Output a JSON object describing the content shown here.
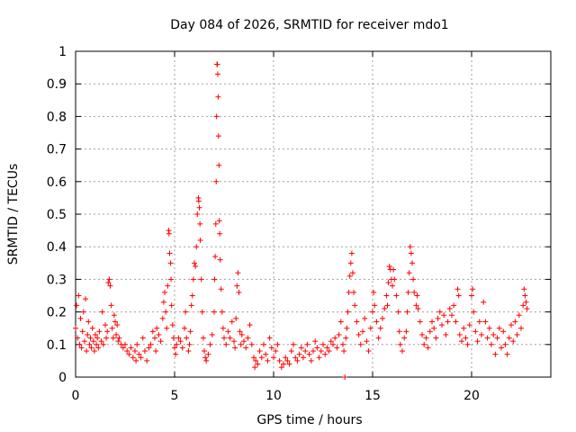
{
  "chart_data": {
    "type": "scatter",
    "title": "Day 084 of 2026, SRMTID for receiver mdo1",
    "xlabel": "GPS time / hours",
    "ylabel": "SRMTID / TECUs",
    "xlim": [
      0,
      24
    ],
    "ylim": [
      0,
      1
    ],
    "xticks": [
      0,
      5,
      10,
      15,
      20
    ],
    "xtick_labels": [
      "0",
      "5",
      "10",
      "15",
      "20"
    ],
    "yticks": [
      0,
      0.1,
      0.2,
      0.3,
      0.4,
      0.5,
      0.6,
      0.7,
      0.8,
      0.9,
      1
    ],
    "ytick_labels": [
      "0",
      "0.1",
      "0.2",
      "0.3",
      "0.4",
      "0.5",
      "0.6",
      "0.7",
      "0.8",
      "0.9",
      "1"
    ],
    "grid": true,
    "marker": "+",
    "color": "#ff0000",
    "series": [
      {
        "name": "mdo1",
        "points": [
          [
            0.0,
            0.15
          ],
          [
            0.05,
            0.22
          ],
          [
            0.1,
            0.12
          ],
          [
            0.15,
            0.25
          ],
          [
            0.2,
            0.1
          ],
          [
            0.25,
            0.18
          ],
          [
            0.3,
            0.09
          ],
          [
            0.35,
            0.14
          ],
          [
            0.4,
            0.2
          ],
          [
            0.45,
            0.11
          ],
          [
            0.5,
            0.24
          ],
          [
            0.55,
            0.08
          ],
          [
            0.6,
            0.13
          ],
          [
            0.65,
            0.17
          ],
          [
            0.7,
            0.1
          ],
          [
            0.75,
            0.12
          ],
          [
            0.8,
            0.09
          ],
          [
            0.85,
            0.15
          ],
          [
            0.9,
            0.11
          ],
          [
            0.95,
            0.08
          ],
          [
            1.0,
            0.13
          ],
          [
            1.05,
            0.1
          ],
          [
            1.1,
            0.12
          ],
          [
            1.15,
            0.09
          ],
          [
            1.2,
            0.14
          ],
          [
            1.3,
            0.11
          ],
          [
            1.35,
            0.2
          ],
          [
            1.4,
            0.1
          ],
          [
            1.5,
            0.16
          ],
          [
            1.55,
            0.12
          ],
          [
            1.6,
            0.14
          ],
          [
            1.65,
            0.29
          ],
          [
            1.7,
            0.3
          ],
          [
            1.75,
            0.28
          ],
          [
            1.8,
            0.22
          ],
          [
            1.85,
            0.15
          ],
          [
            1.9,
            0.12
          ],
          [
            1.95,
            0.19
          ],
          [
            2.0,
            0.17
          ],
          [
            2.05,
            0.13
          ],
          [
            2.1,
            0.16
          ],
          [
            2.15,
            0.11
          ],
          [
            2.2,
            0.12
          ],
          [
            2.3,
            0.1
          ],
          [
            2.4,
            0.09
          ],
          [
            2.5,
            0.1
          ],
          [
            2.6,
            0.08
          ],
          [
            2.7,
            0.07
          ],
          [
            2.8,
            0.09
          ],
          [
            2.9,
            0.06
          ],
          [
            3.0,
            0.08
          ],
          [
            3.05,
            0.05
          ],
          [
            3.1,
            0.1
          ],
          [
            3.2,
            0.07
          ],
          [
            3.3,
            0.06
          ],
          [
            3.4,
            0.12
          ],
          [
            3.5,
            0.08
          ],
          [
            3.6,
            0.05
          ],
          [
            3.7,
            0.09
          ],
          [
            3.8,
            0.1
          ],
          [
            3.9,
            0.14
          ],
          [
            4.0,
            0.12
          ],
          [
            4.05,
            0.08
          ],
          [
            4.1,
            0.15
          ],
          [
            4.2,
            0.13
          ],
          [
            4.3,
            0.11
          ],
          [
            4.4,
            0.18
          ],
          [
            4.45,
            0.23
          ],
          [
            4.5,
            0.26
          ],
          [
            4.55,
            0.2
          ],
          [
            4.6,
            0.15
          ],
          [
            4.65,
            0.28
          ],
          [
            4.7,
            0.45
          ],
          [
            4.72,
            0.44
          ],
          [
            4.75,
            0.38
          ],
          [
            4.8,
            0.35
          ],
          [
            4.82,
            0.3
          ],
          [
            4.85,
            0.22
          ],
          [
            4.9,
            0.16
          ],
          [
            4.95,
            0.12
          ],
          [
            5.0,
            0.09
          ],
          [
            5.05,
            0.07
          ],
          [
            5.1,
            0.1
          ],
          [
            5.2,
            0.12
          ],
          [
            5.3,
            0.11
          ],
          [
            5.4,
            0.09
          ],
          [
            5.5,
            0.15
          ],
          [
            5.55,
            0.2
          ],
          [
            5.6,
            0.12
          ],
          [
            5.7,
            0.08
          ],
          [
            5.75,
            0.1
          ],
          [
            5.8,
            0.14
          ],
          [
            5.85,
            0.22
          ],
          [
            5.9,
            0.25
          ],
          [
            5.95,
            0.3
          ],
          [
            6.0,
            0.35
          ],
          [
            6.05,
            0.34
          ],
          [
            6.1,
            0.4
          ],
          [
            6.15,
            0.5
          ],
          [
            6.2,
            0.55
          ],
          [
            6.22,
            0.54
          ],
          [
            6.25,
            0.52
          ],
          [
            6.28,
            0.47
          ],
          [
            6.3,
            0.42
          ],
          [
            6.35,
            0.3
          ],
          [
            6.4,
            0.2
          ],
          [
            6.45,
            0.12
          ],
          [
            6.5,
            0.08
          ],
          [
            6.55,
            0.06
          ],
          [
            6.6,
            0.05
          ],
          [
            6.7,
            0.07
          ],
          [
            6.8,
            0.1
          ],
          [
            6.9,
            0.13
          ],
          [
            7.0,
            0.2
          ],
          [
            7.02,
            0.3
          ],
          [
            7.05,
            0.37
          ],
          [
            7.08,
            0.47
          ],
          [
            7.1,
            0.6
          ],
          [
            7.12,
            0.8
          ],
          [
            7.14,
            0.96
          ],
          [
            7.16,
            0.96
          ],
          [
            7.18,
            0.93
          ],
          [
            7.2,
            0.86
          ],
          [
            7.22,
            0.74
          ],
          [
            7.24,
            0.65
          ],
          [
            7.26,
            0.48
          ],
          [
            7.28,
            0.44
          ],
          [
            7.3,
            0.36
          ],
          [
            7.35,
            0.27
          ],
          [
            7.4,
            0.2
          ],
          [
            7.45,
            0.15
          ],
          [
            7.5,
            0.12
          ],
          [
            7.6,
            0.1
          ],
          [
            7.7,
            0.14
          ],
          [
            7.8,
            0.12
          ],
          [
            7.9,
            0.17
          ],
          [
            8.0,
            0.11
          ],
          [
            8.05,
            0.09
          ],
          [
            8.1,
            0.18
          ],
          [
            8.15,
            0.28
          ],
          [
            8.2,
            0.32
          ],
          [
            8.25,
            0.26
          ],
          [
            8.3,
            0.14
          ],
          [
            8.35,
            0.1
          ],
          [
            8.4,
            0.13
          ],
          [
            8.5,
            0.11
          ],
          [
            8.6,
            0.09
          ],
          [
            8.7,
            0.12
          ],
          [
            8.8,
            0.16
          ],
          [
            8.9,
            0.1
          ],
          [
            9.0,
            0.06
          ],
          [
            9.05,
            0.03
          ],
          [
            9.1,
            0.05
          ],
          [
            9.2,
            0.04
          ],
          [
            9.3,
            0.08
          ],
          [
            9.4,
            0.06
          ],
          [
            9.5,
            0.1
          ],
          [
            9.6,
            0.07
          ],
          [
            9.7,
            0.05
          ],
          [
            9.8,
            0.12
          ],
          [
            9.9,
            0.09
          ],
          [
            10.0,
            0.06
          ],
          [
            10.1,
            0.08
          ],
          [
            10.2,
            0.1
          ],
          [
            10.3,
            0.05
          ],
          [
            10.4,
            0.03
          ],
          [
            10.5,
            0.04
          ],
          [
            10.6,
            0.06
          ],
          [
            10.7,
            0.05
          ],
          [
            10.8,
            0.04
          ],
          [
            10.9,
            0.08
          ],
          [
            11.0,
            0.1
          ],
          [
            11.1,
            0.06
          ],
          [
            11.2,
            0.05
          ],
          [
            11.3,
            0.07
          ],
          [
            11.4,
            0.09
          ],
          [
            11.5,
            0.06
          ],
          [
            11.6,
            0.08
          ],
          [
            11.7,
            0.1
          ],
          [
            11.8,
            0.07
          ],
          [
            11.9,
            0.05
          ],
          [
            12.0,
            0.08
          ],
          [
            12.1,
            0.11
          ],
          [
            12.2,
            0.09
          ],
          [
            12.3,
            0.06
          ],
          [
            12.4,
            0.08
          ],
          [
            12.5,
            0.1
          ],
          [
            12.6,
            0.07
          ],
          [
            12.7,
            0.09
          ],
          [
            12.8,
            0.08
          ],
          [
            12.9,
            0.11
          ],
          [
            13.0,
            0.1
          ],
          [
            13.1,
            0.12
          ],
          [
            13.2,
            0.09
          ],
          [
            13.3,
            0.13
          ],
          [
            13.4,
            0.17
          ],
          [
            13.5,
            0.1
          ],
          [
            13.55,
            0.08
          ],
          [
            13.6,
            0.0
          ],
          [
            13.65,
            0.12
          ],
          [
            13.7,
            0.15
          ],
          [
            13.75,
            0.2
          ],
          [
            13.8,
            0.26
          ],
          [
            13.85,
            0.31
          ],
          [
            13.9,
            0.35
          ],
          [
            13.95,
            0.38
          ],
          [
            14.0,
            0.32
          ],
          [
            14.05,
            0.26
          ],
          [
            14.1,
            0.22
          ],
          [
            14.2,
            0.17
          ],
          [
            14.3,
            0.13
          ],
          [
            14.4,
            0.1
          ],
          [
            14.5,
            0.14
          ],
          [
            14.6,
            0.18
          ],
          [
            14.7,
            0.11
          ],
          [
            14.8,
            0.08
          ],
          [
            14.9,
            0.15
          ],
          [
            15.0,
            0.2
          ],
          [
            15.05,
            0.26
          ],
          [
            15.1,
            0.22
          ],
          [
            15.2,
            0.17
          ],
          [
            15.3,
            0.12
          ],
          [
            15.4,
            0.15
          ],
          [
            15.5,
            0.18
          ],
          [
            15.6,
            0.21
          ],
          [
            15.7,
            0.25
          ],
          [
            15.75,
            0.22
          ],
          [
            15.8,
            0.29
          ],
          [
            15.85,
            0.34
          ],
          [
            15.9,
            0.33
          ],
          [
            15.95,
            0.3
          ],
          [
            16.0,
            0.28
          ],
          [
            16.05,
            0.33
          ],
          [
            16.1,
            0.3
          ],
          [
            16.2,
            0.25
          ],
          [
            16.3,
            0.2
          ],
          [
            16.35,
            0.14
          ],
          [
            16.4,
            0.1
          ],
          [
            16.5,
            0.08
          ],
          [
            16.6,
            0.12
          ],
          [
            16.7,
            0.14
          ],
          [
            16.75,
            0.2
          ],
          [
            16.8,
            0.26
          ],
          [
            16.85,
            0.32
          ],
          [
            16.9,
            0.4
          ],
          [
            16.95,
            0.38
          ],
          [
            17.0,
            0.35
          ],
          [
            17.05,
            0.3
          ],
          [
            17.1,
            0.26
          ],
          [
            17.2,
            0.22
          ],
          [
            17.25,
            0.25
          ],
          [
            17.3,
            0.21
          ],
          [
            17.4,
            0.17
          ],
          [
            17.5,
            0.13
          ],
          [
            17.6,
            0.1
          ],
          [
            17.7,
            0.12
          ],
          [
            17.8,
            0.09
          ],
          [
            17.9,
            0.14
          ],
          [
            18.0,
            0.17
          ],
          [
            18.1,
            0.15
          ],
          [
            18.2,
            0.12
          ],
          [
            18.3,
            0.18
          ],
          [
            18.4,
            0.2
          ],
          [
            18.5,
            0.16
          ],
          [
            18.6,
            0.19
          ],
          [
            18.7,
            0.13
          ],
          [
            18.8,
            0.17
          ],
          [
            18.9,
            0.21
          ],
          [
            19.0,
            0.19
          ],
          [
            19.1,
            0.22
          ],
          [
            19.2,
            0.17
          ],
          [
            19.3,
            0.27
          ],
          [
            19.35,
            0.25
          ],
          [
            19.4,
            0.13
          ],
          [
            19.5,
            0.11
          ],
          [
            19.6,
            0.15
          ],
          [
            19.7,
            0.12
          ],
          [
            19.8,
            0.1
          ],
          [
            19.9,
            0.16
          ],
          [
            20.0,
            0.25
          ],
          [
            20.05,
            0.27
          ],
          [
            20.1,
            0.2
          ],
          [
            20.2,
            0.14
          ],
          [
            20.3,
            0.11
          ],
          [
            20.4,
            0.17
          ],
          [
            20.5,
            0.13
          ],
          [
            20.6,
            0.23
          ],
          [
            20.7,
            0.17
          ],
          [
            20.8,
            0.12
          ],
          [
            20.9,
            0.15
          ],
          [
            21.0,
            0.1
          ],
          [
            21.1,
            0.13
          ],
          [
            21.2,
            0.07
          ],
          [
            21.3,
            0.12
          ],
          [
            21.4,
            0.15
          ],
          [
            21.5,
            0.09
          ],
          [
            21.6,
            0.14
          ],
          [
            21.7,
            0.1
          ],
          [
            21.8,
            0.07
          ],
          [
            21.9,
            0.12
          ],
          [
            22.0,
            0.16
          ],
          [
            22.1,
            0.11
          ],
          [
            22.2,
            0.17
          ],
          [
            22.3,
            0.13
          ],
          [
            22.4,
            0.19
          ],
          [
            22.5,
            0.15
          ],
          [
            22.6,
            0.22
          ],
          [
            22.65,
            0.27
          ],
          [
            22.7,
            0.25
          ],
          [
            22.75,
            0.23
          ],
          [
            22.8,
            0.21
          ]
        ]
      }
    ]
  }
}
